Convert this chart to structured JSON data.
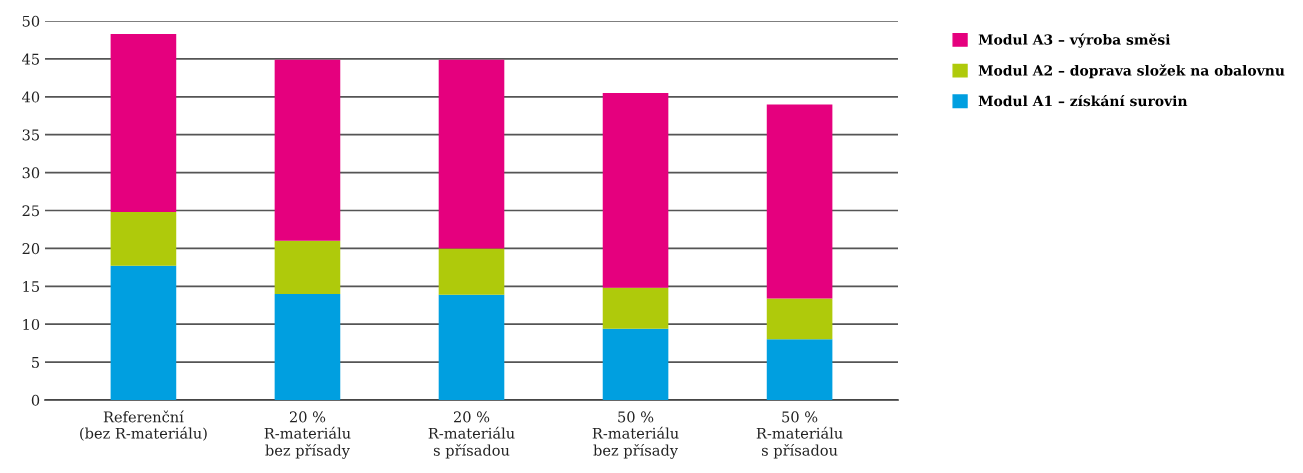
{
  "chart_data": {
    "type": "bar",
    "stacked": true,
    "categories": [
      "Referenční\n(bez R-materiálu)",
      "20 %\nR-materiálu\nbez přísady",
      "20 %\nR-materiálu\ns přísadou",
      "50 %\nR-materiálu\nbez přísady",
      "50 %\nR-materiálu\ns přísadou"
    ],
    "series": [
      {
        "name": "Modul A1 – získání surovin",
        "color": "#009fe0",
        "values": [
          17.7,
          14.0,
          13.9,
          9.4,
          8.0
        ]
      },
      {
        "name": "Modul A2 – doprava složek na obalovnu",
        "color": "#afca0b",
        "values": [
          7.1,
          7.0,
          6.1,
          5.4,
          5.4
        ]
      },
      {
        "name": "Modul A3 – výroba směsi",
        "color": "#e5007e",
        "values": [
          23.5,
          23.9,
          24.9,
          25.7,
          25.6
        ]
      }
    ],
    "ylim": [
      0,
      50
    ],
    "yticks": [
      0,
      5,
      10,
      15,
      20,
      25,
      30,
      35,
      40,
      45,
      50
    ],
    "grid": "y",
    "legend": "top right"
  }
}
